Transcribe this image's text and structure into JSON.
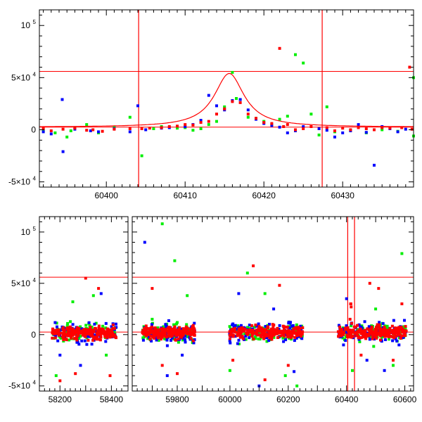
{
  "colors": {
    "red": "#ff0000",
    "green": "#00ee00",
    "blue": "#0000ff",
    "frame": "#000000"
  },
  "chart_data": [
    {
      "type": "scatter",
      "xlim": [
        60391.5,
        60439
      ],
      "ylim": [
        -55000,
        115000
      ],
      "yticks": [
        {
          "value": 100000,
          "label": "10",
          "exp": "5"
        },
        {
          "value": 50000,
          "label": "5×10",
          "exp": "4"
        },
        {
          "value": 0,
          "label": "0",
          "exp": ""
        },
        {
          "value": -50000,
          "label": "-5×10",
          "exp": "4"
        }
      ],
      "xticks": [
        {
          "value": 60400,
          "label": "60400"
        },
        {
          "value": 60410,
          "label": "60410"
        },
        {
          "value": 60420,
          "label": "60420"
        },
        {
          "value": 60430,
          "label": "60430"
        }
      ],
      "hlines": [
        56000,
        2500
      ],
      "vlines": [
        60404.1,
        60427.4
      ],
      "model_curve": {
        "baseline": 2500,
        "peak": 51500,
        "t0": 60415.6,
        "width": 2.3,
        "x_from": 60391.5,
        "x_to": 60439
      },
      "series": [
        {
          "color": "red",
          "points": [
            [
              60392,
              1000
            ],
            [
              60393,
              -1000
            ],
            [
              60394.5,
              500
            ],
            [
              60396,
              1500
            ],
            [
              60397.5,
              -500
            ],
            [
              60398.3,
              0
            ],
            [
              60399.5,
              -1500
            ],
            [
              60401,
              500
            ],
            [
              60403,
              1000
            ],
            [
              60404.5,
              1000
            ],
            [
              60405.5,
              1500
            ],
            [
              60407,
              2000
            ],
            [
              60408,
              3000
            ],
            [
              60409,
              3500
            ],
            [
              60410,
              5000
            ],
            [
              60411,
              4500
            ],
            [
              60412,
              7000
            ],
            [
              60413,
              8000
            ],
            [
              60414,
              15000
            ],
            [
              60415,
              20000
            ],
            [
              60416,
              27000
            ],
            [
              60417,
              26000
            ],
            [
              60418,
              15000
            ],
            [
              60419,
              11000
            ],
            [
              60420,
              7000
            ],
            [
              60421,
              6000
            ],
            [
              60422,
              78000
            ],
            [
              60422.5,
              3000
            ],
            [
              60423,
              5000
            ],
            [
              60424,
              0
            ],
            [
              60425,
              1000
            ],
            [
              60426,
              3000
            ],
            [
              60428,
              2000
            ],
            [
              60429,
              -1000
            ],
            [
              60430,
              1500
            ],
            [
              60431,
              0
            ],
            [
              60432,
              2000
            ],
            [
              60433,
              1000
            ],
            [
              60434,
              0
            ],
            [
              60435,
              2000
            ],
            [
              60436,
              1500
            ],
            [
              60437.5,
              2000
            ],
            [
              60438.5,
              60000
            ],
            [
              60438.8,
              500
            ]
          ]
        },
        {
          "color": "green",
          "points": [
            [
              60392,
              -500
            ],
            [
              60393.5,
              -3000
            ],
            [
              60395,
              -7000
            ],
            [
              60395.5,
              -1000
            ],
            [
              60396,
              2000
            ],
            [
              60397.5,
              5000
            ],
            [
              60399,
              -3000
            ],
            [
              60401,
              2000
            ],
            [
              60403,
              12000
            ],
            [
              60404.5,
              -25000
            ],
            [
              60406,
              1000
            ],
            [
              60407,
              3000
            ],
            [
              60409,
              1500
            ],
            [
              60410,
              2000
            ],
            [
              60411,
              -500
            ],
            [
              60412,
              1000
            ],
            [
              60413,
              5000
            ],
            [
              60414,
              8000
            ],
            [
              60415,
              22000
            ],
            [
              60416,
              55000
            ],
            [
              60416.5,
              30000
            ],
            [
              60417,
              29000
            ],
            [
              60418,
              12000
            ],
            [
              60419,
              11000
            ],
            [
              60420,
              8000
            ],
            [
              60421,
              5000
            ],
            [
              60422,
              10000
            ],
            [
              60423,
              13000
            ],
            [
              60424,
              72000
            ],
            [
              60425,
              64000
            ],
            [
              60426,
              15000
            ],
            [
              60427,
              -5000
            ],
            [
              60428,
              22000
            ],
            [
              60429,
              -2000
            ],
            [
              60431,
              -500
            ],
            [
              60433,
              -3000
            ],
            [
              60435,
              0
            ],
            [
              60437,
              -1500
            ],
            [
              60439,
              50000
            ],
            [
              60439,
              -6000
            ]
          ]
        },
        {
          "color": "blue",
          "points": [
            [
              60392,
              -2000
            ],
            [
              60393,
              -4000
            ],
            [
              60394.4,
              29000
            ],
            [
              60394.5,
              -21000
            ],
            [
              60396,
              500
            ],
            [
              60398,
              -1000
            ],
            [
              60399,
              -2000
            ],
            [
              60401,
              1000
            ],
            [
              60403,
              -2000
            ],
            [
              60404,
              23000
            ],
            [
              60405,
              0
            ],
            [
              60407,
              1500
            ],
            [
              60408,
              2000
            ],
            [
              60410,
              3000
            ],
            [
              60411,
              5000
            ],
            [
              60412,
              9000
            ],
            [
              60413,
              33000
            ],
            [
              60414,
              23000
            ],
            [
              60415,
              19000
            ],
            [
              60416,
              28000
            ],
            [
              60417,
              29000
            ],
            [
              60418,
              19000
            ],
            [
              60419,
              10000
            ],
            [
              60420,
              6000
            ],
            [
              60421,
              4000
            ],
            [
              60422,
              2500
            ],
            [
              60423,
              -3000
            ],
            [
              60424,
              -1000
            ],
            [
              60425,
              3000
            ],
            [
              60427,
              1000
            ],
            [
              60428,
              -500
            ],
            [
              60429,
              -7000
            ],
            [
              60430,
              -3000
            ],
            [
              60431,
              -1000
            ],
            [
              60432,
              5000
            ],
            [
              60433,
              -2500
            ],
            [
              60434,
              -34000
            ],
            [
              60435,
              3000
            ],
            [
              60436,
              1000
            ],
            [
              60437,
              -2000
            ],
            [
              60438,
              500
            ]
          ]
        }
      ]
    },
    {
      "type": "scatter",
      "segments": [
        {
          "xlim": [
            58120,
            58440
          ]
        },
        {
          "xlim": [
            59620,
            59935
          ]
        },
        {
          "xlim": [
            59935,
            60630
          ]
        }
      ],
      "ylim": [
        -55000,
        115000
      ],
      "yticks": [
        {
          "value": 100000,
          "label": "10",
          "exp": "5"
        },
        {
          "value": 50000,
          "label": "5×10",
          "exp": "4"
        },
        {
          "value": 0,
          "label": "0",
          "exp": ""
        },
        {
          "value": -50000,
          "label": "-5×10",
          "exp": "4"
        }
      ],
      "xticks": [
        {
          "value": 58200,
          "label": "58200"
        },
        {
          "value": 58400,
          "label": "58400"
        },
        {
          "value": 59800,
          "label": "59800"
        },
        {
          "value": 60000,
          "label": "60000"
        },
        {
          "value": 60200,
          "label": "60200"
        },
        {
          "value": 60400,
          "label": "60400"
        },
        {
          "value": 60600,
          "label": "60600"
        }
      ],
      "hlines": [
        56000,
        2500
      ],
      "vlines": [
        60404.1,
        60427.4
      ],
      "seasons": [
        {
          "start": 58170,
          "end": 58420
        },
        {
          "start": 59660,
          "end": 59870
        },
        {
          "start": 59995,
          "end": 60250
        },
        {
          "start": 60370,
          "end": 60605
        }
      ],
      "outliers": [
        {
          "color": "red",
          "points": [
            [
              58200,
              -45000
            ],
            [
              58260,
              -38000
            ],
            [
              58300,
              55000
            ],
            [
              58350,
              45000
            ],
            [
              58395,
              -40000
            ],
            [
              59700,
              45000
            ],
            [
              59740,
              -30000
            ],
            [
              59800,
              -38000
            ],
            [
              60010,
              -25000
            ],
            [
              60080,
              67000
            ],
            [
              60120,
              -44000
            ],
            [
              60170,
              48000
            ],
            [
              60200,
              -30000
            ],
            [
              60415,
              30000
            ],
            [
              60450,
              -20000
            ],
            [
              60480,
              50000
            ],
            [
              60510,
              45000
            ],
            [
              60560,
              -25000
            ],
            [
              60590,
              30000
            ]
          ]
        },
        {
          "color": "green",
          "points": [
            [
              58185,
              -40000
            ],
            [
              58250,
              32000
            ],
            [
              58330,
              38000
            ],
            [
              58380,
              -20000
            ],
            [
              59700,
              15000
            ],
            [
              59740,
              108000
            ],
            [
              59790,
              72000
            ],
            [
              59840,
              38000
            ],
            [
              60000,
              -35000
            ],
            [
              60060,
              60000
            ],
            [
              60120,
              40000
            ],
            [
              60190,
              -40000
            ],
            [
              60230,
              -50000
            ],
            [
              60420,
              -35000
            ],
            [
              60500,
              25000
            ],
            [
              60560,
              -30000
            ],
            [
              60590,
              79000
            ]
          ]
        },
        {
          "color": "blue",
          "points": [
            [
              58200,
              -20000
            ],
            [
              58280,
              -30000
            ],
            [
              58360,
              40000
            ],
            [
              59670,
              90000
            ],
            [
              59760,
              -40000
            ],
            [
              59820,
              -20000
            ],
            [
              60030,
              40000
            ],
            [
              60100,
              -50000
            ],
            [
              60150,
              25000
            ],
            [
              60220,
              -36000
            ],
            [
              60400,
              35000
            ],
            [
              60470,
              -25000
            ],
            [
              60530,
              -35000
            ],
            [
              60580,
              -10000
            ]
          ]
        }
      ]
    }
  ]
}
